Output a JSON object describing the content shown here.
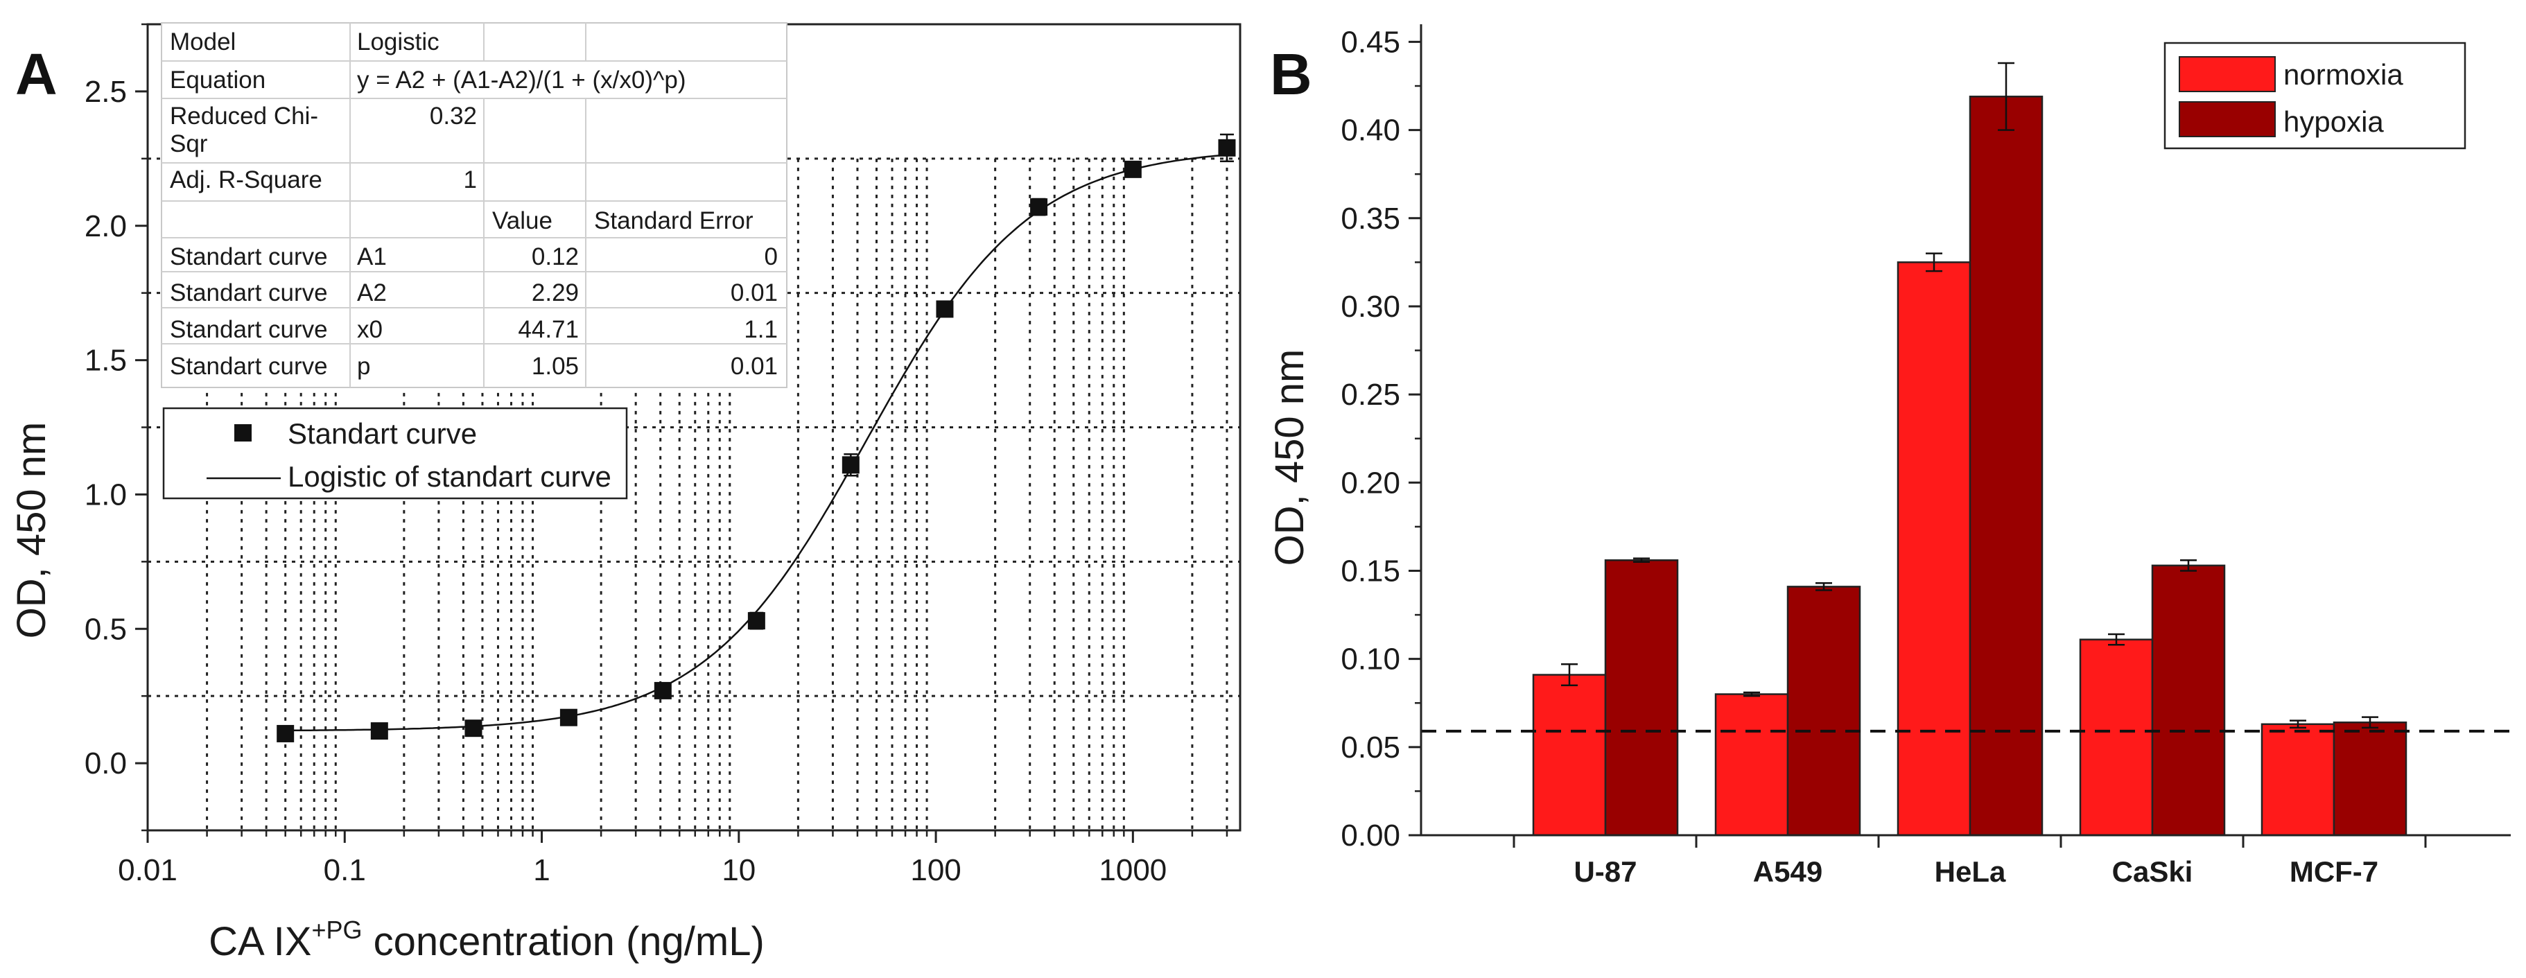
{
  "colors": {
    "normoxia": "#ff1a1a",
    "hypoxia": "#990000",
    "axis": "#222222"
  },
  "chart_data": [
    {
      "panel": "A",
      "type": "scatter",
      "xscale": "log",
      "xlabel_main": "CA IX",
      "xlabel_sup": "+PG",
      "xlabel_rest": " concentration (ng/mL)",
      "ylabel": "OD, 450 nm",
      "xlim": [
        0.01,
        3500
      ],
      "ylim": [
        -0.25,
        2.75
      ],
      "xticks": [
        "0.01",
        "0.1",
        "1",
        "10",
        "100",
        "1000"
      ],
      "yticks": [
        "0.0",
        "0.5",
        "1.0",
        "1.5",
        "2.0",
        "2.5"
      ],
      "grid": "dotted",
      "series": [
        {
          "name": "Standart curve",
          "x": [
            0.05,
            0.15,
            0.45,
            1.37,
            4.12,
            12.3,
            37,
            111,
            333,
            1000,
            3000
          ],
          "y": [
            0.11,
            0.12,
            0.13,
            0.17,
            0.27,
            0.53,
            1.11,
            1.69,
            2.07,
            2.21,
            2.29
          ],
          "err": [
            0.01,
            0.01,
            0.01,
            0.01,
            0.02,
            0.03,
            0.04,
            0.01,
            0.03,
            0.02,
            0.05
          ]
        }
      ],
      "fit": {
        "name": "Logistic of standart curve",
        "A1": 0.12,
        "A2": 2.29,
        "x0": 44.71,
        "p": 1.05
      },
      "fit_table": {
        "model_label": "Model",
        "model": "Logistic",
        "equation_label": "Equation",
        "equation": "y = A2 + (A1-A2)/(1 + (x/x0)^p)",
        "chi_label_1": "Reduced Chi-",
        "chi_label_2": "Sqr",
        "chi": "0.32",
        "r2_label": "Adj. R-Square",
        "r2": "1",
        "col_value": "Value",
        "col_error": "Standard Error",
        "rows": [
          {
            "curve": "Standart curve",
            "param": "A1",
            "value": "0.12",
            "error": "0"
          },
          {
            "curve": "Standart curve",
            "param": "A2",
            "value": "2.29",
            "error": "0.01"
          },
          {
            "curve": "Standart curve",
            "param": "x0",
            "value": "44.71",
            "error": "1.1"
          },
          {
            "curve": "Standart curve",
            "param": "p",
            "value": "1.05",
            "error": "0.01"
          }
        ]
      },
      "legend": [
        "Standart curve",
        "Logistic of standart curve"
      ],
      "legend_position": "center-left"
    },
    {
      "panel": "B",
      "type": "bar",
      "ylabel": "OD, 450 nm",
      "categories": [
        "U-87",
        "A549",
        "HeLa",
        "CaSki",
        "MCF-7"
      ],
      "ylim": [
        0,
        0.46
      ],
      "yticks": [
        "0.00",
        "0.05",
        "0.10",
        "0.15",
        "0.20",
        "0.25",
        "0.30",
        "0.35",
        "0.40",
        "0.45"
      ],
      "series": [
        {
          "name": "normoxia",
          "values": [
            0.091,
            0.08,
            0.325,
            0.111,
            0.063
          ],
          "err": [
            0.006,
            0.001,
            0.005,
            0.003,
            0.002
          ]
        },
        {
          "name": "hypoxia",
          "values": [
            0.156,
            0.141,
            0.419,
            0.153,
            0.064
          ],
          "err": [
            0.001,
            0.002,
            0.019,
            0.003,
            0.003
          ]
        }
      ],
      "threshold": 0.059,
      "legend_position": "top-right"
    }
  ]
}
